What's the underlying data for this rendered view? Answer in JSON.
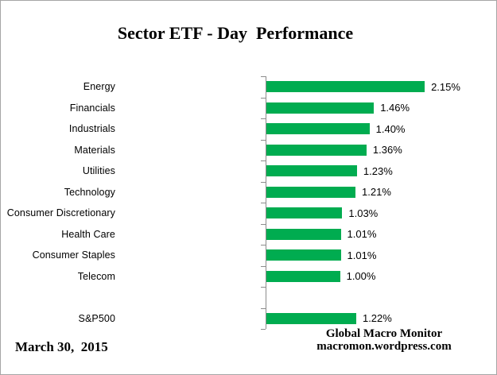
{
  "chart_data": {
    "type": "bar",
    "orientation": "horizontal",
    "title": "Sector ETF - Day  Performance",
    "categories": [
      "Energy",
      "Financials",
      "Industrials",
      "Materials",
      "Utilities",
      "Technology",
      "Consumer Discretionary",
      "Health Care",
      "Consumer Staples",
      "Telecom",
      "",
      "S&P500"
    ],
    "values": [
      2.15,
      1.46,
      1.4,
      1.36,
      1.23,
      1.21,
      1.03,
      1.01,
      1.01,
      1.0,
      null,
      1.22
    ],
    "value_labels": [
      "2.15%",
      "1.46%",
      "1.40%",
      "1.36%",
      "1.23%",
      "1.21%",
      "1.03%",
      "1.01%",
      "1.01%",
      "1.00%",
      "",
      "1.22%"
    ],
    "xlim": [
      0,
      2.3
    ],
    "grid": false,
    "legend": false,
    "bar_color": "#00AC50",
    "axis_color": "#8c8c8c",
    "label_color": "#000000"
  },
  "footer": {
    "date": "March 30,  2015",
    "source_line1": "Global Macro Monitor",
    "source_line2": "macromon.wordpress.com"
  }
}
